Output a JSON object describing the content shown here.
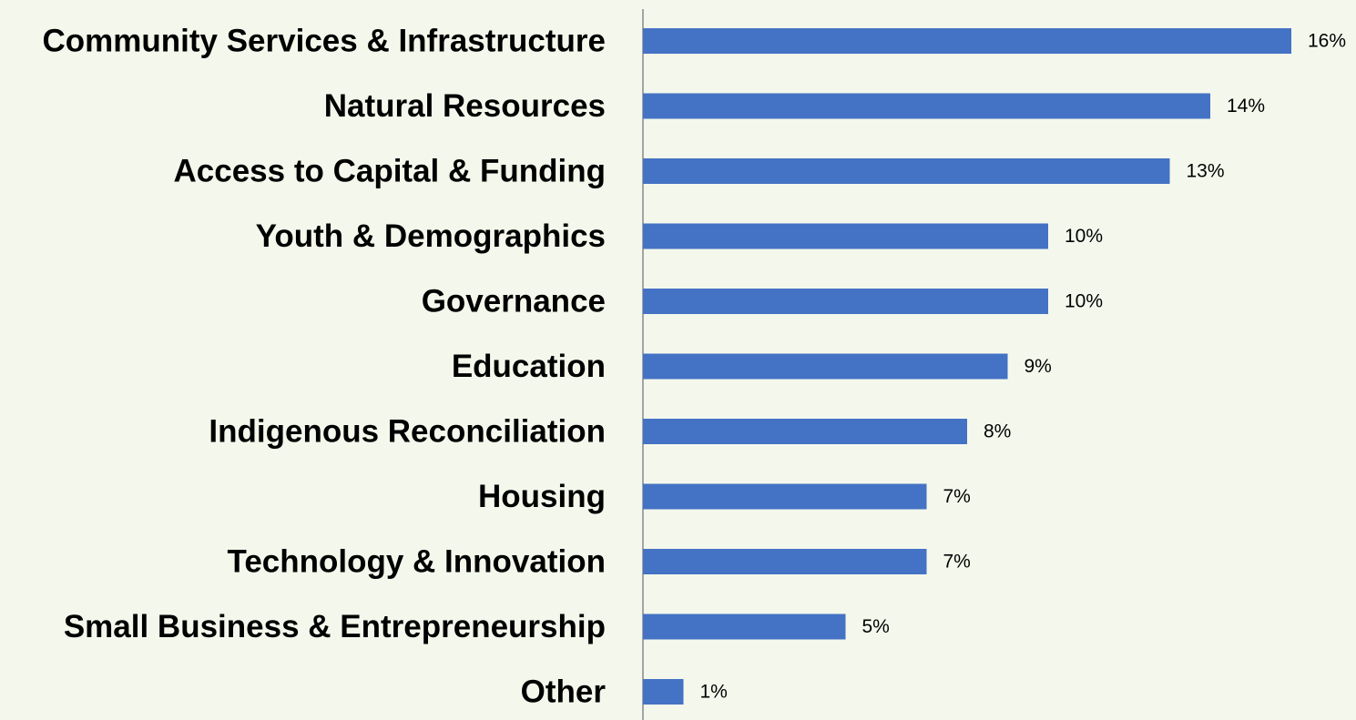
{
  "chart_data": {
    "type": "bar",
    "orientation": "horizontal",
    "categories": [
      "Community Services & Infrastructure",
      "Natural Resources",
      "Access to Capital & Funding",
      "Youth & Demographics",
      "Governance",
      "Education",
      "Indigenous Reconciliation",
      "Housing",
      "Technology & Innovation",
      "Small Business & Entrepreneurship",
      "Other"
    ],
    "values": [
      16,
      14,
      13,
      10,
      10,
      9,
      8,
      7,
      7,
      5,
      1
    ],
    "value_labels": [
      "16%",
      "14%",
      "13%",
      "10%",
      "10%",
      "9%",
      "8%",
      "7%",
      "7%",
      "5%",
      "1%"
    ],
    "color": "#4472c4"
  }
}
